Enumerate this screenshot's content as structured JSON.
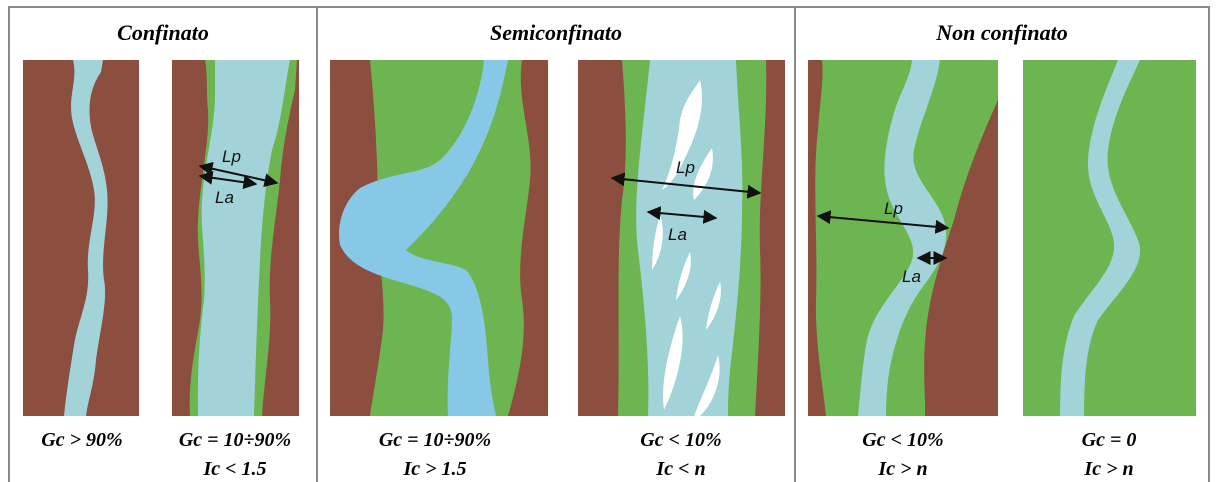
{
  "colors": {
    "rock": "#8b4e3f",
    "plain": "#6db550",
    "channel_pale": "#a2d3d8",
    "channel_blue": "#86c8e6",
    "bar": "#ffffff",
    "border": "#8a8a8a"
  },
  "categories": [
    {
      "title": "Confinato"
    },
    {
      "title": "Semiconfinato"
    },
    {
      "title": "Non confinato"
    }
  ],
  "panels": [
    {
      "gc": "Gc > 90%",
      "ic": ""
    },
    {
      "gc": "Gc = 10÷90%",
      "ic": "Ic < 1.5"
    },
    {
      "gc": "Gc = 10÷90%",
      "ic": "Ic > 1.5"
    },
    {
      "gc": "Gc < 10%",
      "ic": "Ic < n"
    },
    {
      "gc": "Gc < 10%",
      "ic": "Ic > n"
    },
    {
      "gc": "Gc = 0",
      "ic": "Ic > n"
    }
  ],
  "dims": {
    "lp": "Lp",
    "la": "La"
  }
}
